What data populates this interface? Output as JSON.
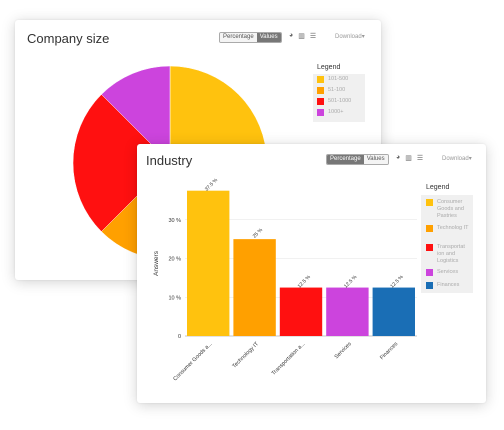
{
  "company_card": {
    "title": "Company size",
    "toggle": {
      "percentage": "Percentage",
      "values": "Values"
    },
    "download": "Download",
    "legend": {
      "title": "Legend",
      "items": [
        {
          "label": "101-500",
          "color": "#FFC20E"
        },
        {
          "label": "51-100",
          "color": "#FFA000"
        },
        {
          "label": "501-1000",
          "color": "#FF1010"
        },
        {
          "label": "1000+",
          "color": "#CC44DD"
        }
      ]
    }
  },
  "industry_card": {
    "title": "Industry",
    "toggle": {
      "percentage": "Percentage",
      "values": "Values"
    },
    "download": "Download",
    "legend": {
      "title": "Legend",
      "items": [
        {
          "label": "Consumer Goods and Pastries",
          "color": "#FFC20E"
        },
        {
          "label": "Technolog IT",
          "color": "#FFA000"
        },
        {
          "label": "Transportat ion and Logistics",
          "color": "#FF1010"
        },
        {
          "label": "Services",
          "color": "#CC44DD"
        },
        {
          "label": "Finances",
          "color": "#1A6EB5"
        }
      ]
    }
  },
  "chart_data": [
    {
      "type": "pie",
      "title": "Company size",
      "categories": [
        "101-500",
        "51-100",
        "501-1000",
        "1000+"
      ],
      "values": [
        50,
        12.5,
        25,
        12.5
      ],
      "colors": [
        "#FFC20E",
        "#FFA000",
        "#FF1010",
        "#CC44DD"
      ],
      "legend": "right"
    },
    {
      "type": "bar",
      "title": "Industry",
      "categories": [
        "Consumer Goods a...",
        "Technology IT",
        "Transportation a...",
        "Services",
        "Finances"
      ],
      "values": [
        37.5,
        25,
        12.5,
        12.5,
        12.5
      ],
      "data_labels": [
        "37.5 %",
        "25 %",
        "12.5 %",
        "12.5 %",
        "12.5 %"
      ],
      "colors": [
        "#FFC20E",
        "#FFA000",
        "#FF1010",
        "#CC44DD",
        "#1A6EB5"
      ],
      "ylabel": "Answers",
      "ytick_labels": [
        "0",
        "10 %",
        "20 %",
        "30 %"
      ],
      "yticks": [
        0,
        10,
        20,
        30
      ],
      "ylim": [
        0,
        40
      ],
      "grid": true,
      "legend": "right"
    }
  ]
}
